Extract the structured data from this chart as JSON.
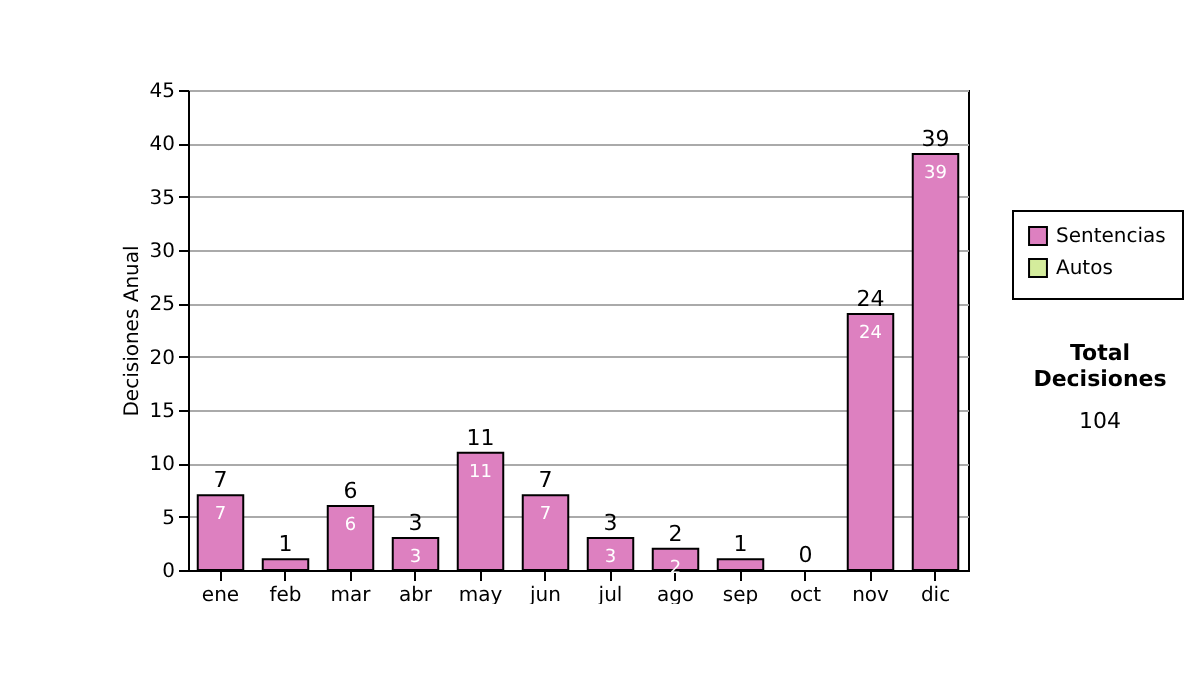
{
  "chart_data": {
    "type": "bar",
    "ylabel": "Decisiones Anual",
    "categories": [
      "ene",
      "feb",
      "mar",
      "abr",
      "may",
      "jun",
      "jul",
      "ago",
      "sep",
      "oct",
      "nov",
      "dic"
    ],
    "series": [
      {
        "name": "Sentencias",
        "color": "#dd80c0",
        "values": [
          7,
          1,
          6,
          3,
          11,
          7,
          3,
          2,
          1,
          0,
          24,
          39
        ],
        "value_labels": [
          "7",
          null,
          "6",
          "3",
          "11",
          "7",
          "3",
          "2",
          null,
          null,
          "24",
          "39"
        ]
      },
      {
        "name": "Autos",
        "color": "#d4ec9c",
        "values": [
          0,
          0,
          0,
          0,
          0,
          0,
          0,
          0,
          0,
          0,
          0,
          0
        ]
      }
    ],
    "stacked": true,
    "totals": [
      "7",
      "1",
      "6",
      "3",
      "11",
      "7",
      "3",
      "2",
      "1",
      "0",
      "24",
      "39"
    ],
    "ylim": [
      0,
      45
    ],
    "yticks": [
      0,
      5,
      10,
      15,
      20,
      25,
      30,
      35,
      40,
      45
    ],
    "grid": "y",
    "legend": "right",
    "annotations": [
      "Total Decisiones",
      "104"
    ]
  }
}
